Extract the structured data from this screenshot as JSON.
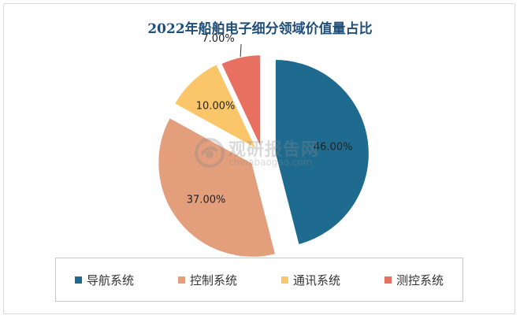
{
  "chart_data": {
    "type": "pie",
    "title": "2022年船舶电子细分领域价值量占比",
    "slices": [
      {
        "name": "导航系统",
        "value": 46.0,
        "label": "46.00%",
        "color": "#1f6b8f"
      },
      {
        "name": "控制系统",
        "value": 37.0,
        "label": "37.00%",
        "color": "#e39e7c"
      },
      {
        "name": "通讯系统",
        "value": 10.0,
        "label": "10.00%",
        "color": "#fbc66a"
      },
      {
        "name": "测控系统",
        "value": 7.0,
        "label": "7.00%",
        "color": "#e87060"
      }
    ],
    "legend": "bottom",
    "exploded": true
  },
  "watermark": {
    "text": "观研报告网",
    "url": "chinabaogao.com",
    "logo": "chinabaogao-logo-icon"
  }
}
